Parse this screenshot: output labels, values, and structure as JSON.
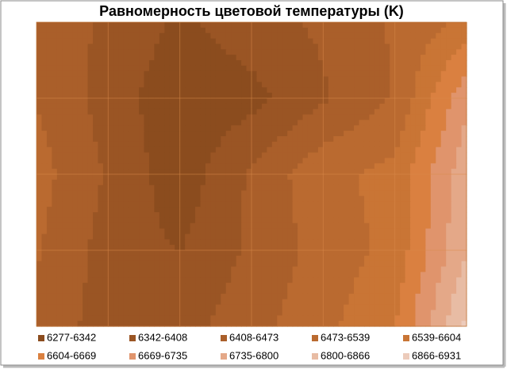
{
  "chart_data": {
    "type": "contour",
    "title": "Равномерность цветовой температуры (K)",
    "levels": [
      6277,
      6342,
      6408,
      6473,
      6539,
      6604,
      6669,
      6735,
      6800,
      6866,
      6931
    ],
    "grid": [
      [
        6440,
        6400,
        6330,
        6380,
        6420,
        6480,
        6560
      ],
      [
        6470,
        6380,
        6290,
        6320,
        6400,
        6480,
        6720
      ],
      [
        6500,
        6400,
        6300,
        6420,
        6520,
        6560,
        6780
      ],
      [
        6480,
        6380,
        6340,
        6420,
        6500,
        6560,
        6800
      ],
      [
        6450,
        6380,
        6380,
        6450,
        6520,
        6600,
        6880
      ]
    ],
    "series": [
      {
        "name": "6277-6342",
        "color": "#8b4c1e"
      },
      {
        "name": "6342-6408",
        "color": "#9a5524"
      },
      {
        "name": "6408-6473",
        "color": "#aa5f2a"
      },
      {
        "name": "6473-6539",
        "color": "#ba6a30"
      },
      {
        "name": "6539-6604",
        "color": "#c97535"
      },
      {
        "name": "6604-6669",
        "color": "#da8040"
      },
      {
        "name": "6669-6735",
        "color": "#e0946c"
      },
      {
        "name": "6735-6800",
        "color": "#e4a888"
      },
      {
        "name": "6800-6866",
        "color": "#e8bca4"
      },
      {
        "name": "6866-6931",
        "color": "#eccbbb"
      }
    ]
  }
}
